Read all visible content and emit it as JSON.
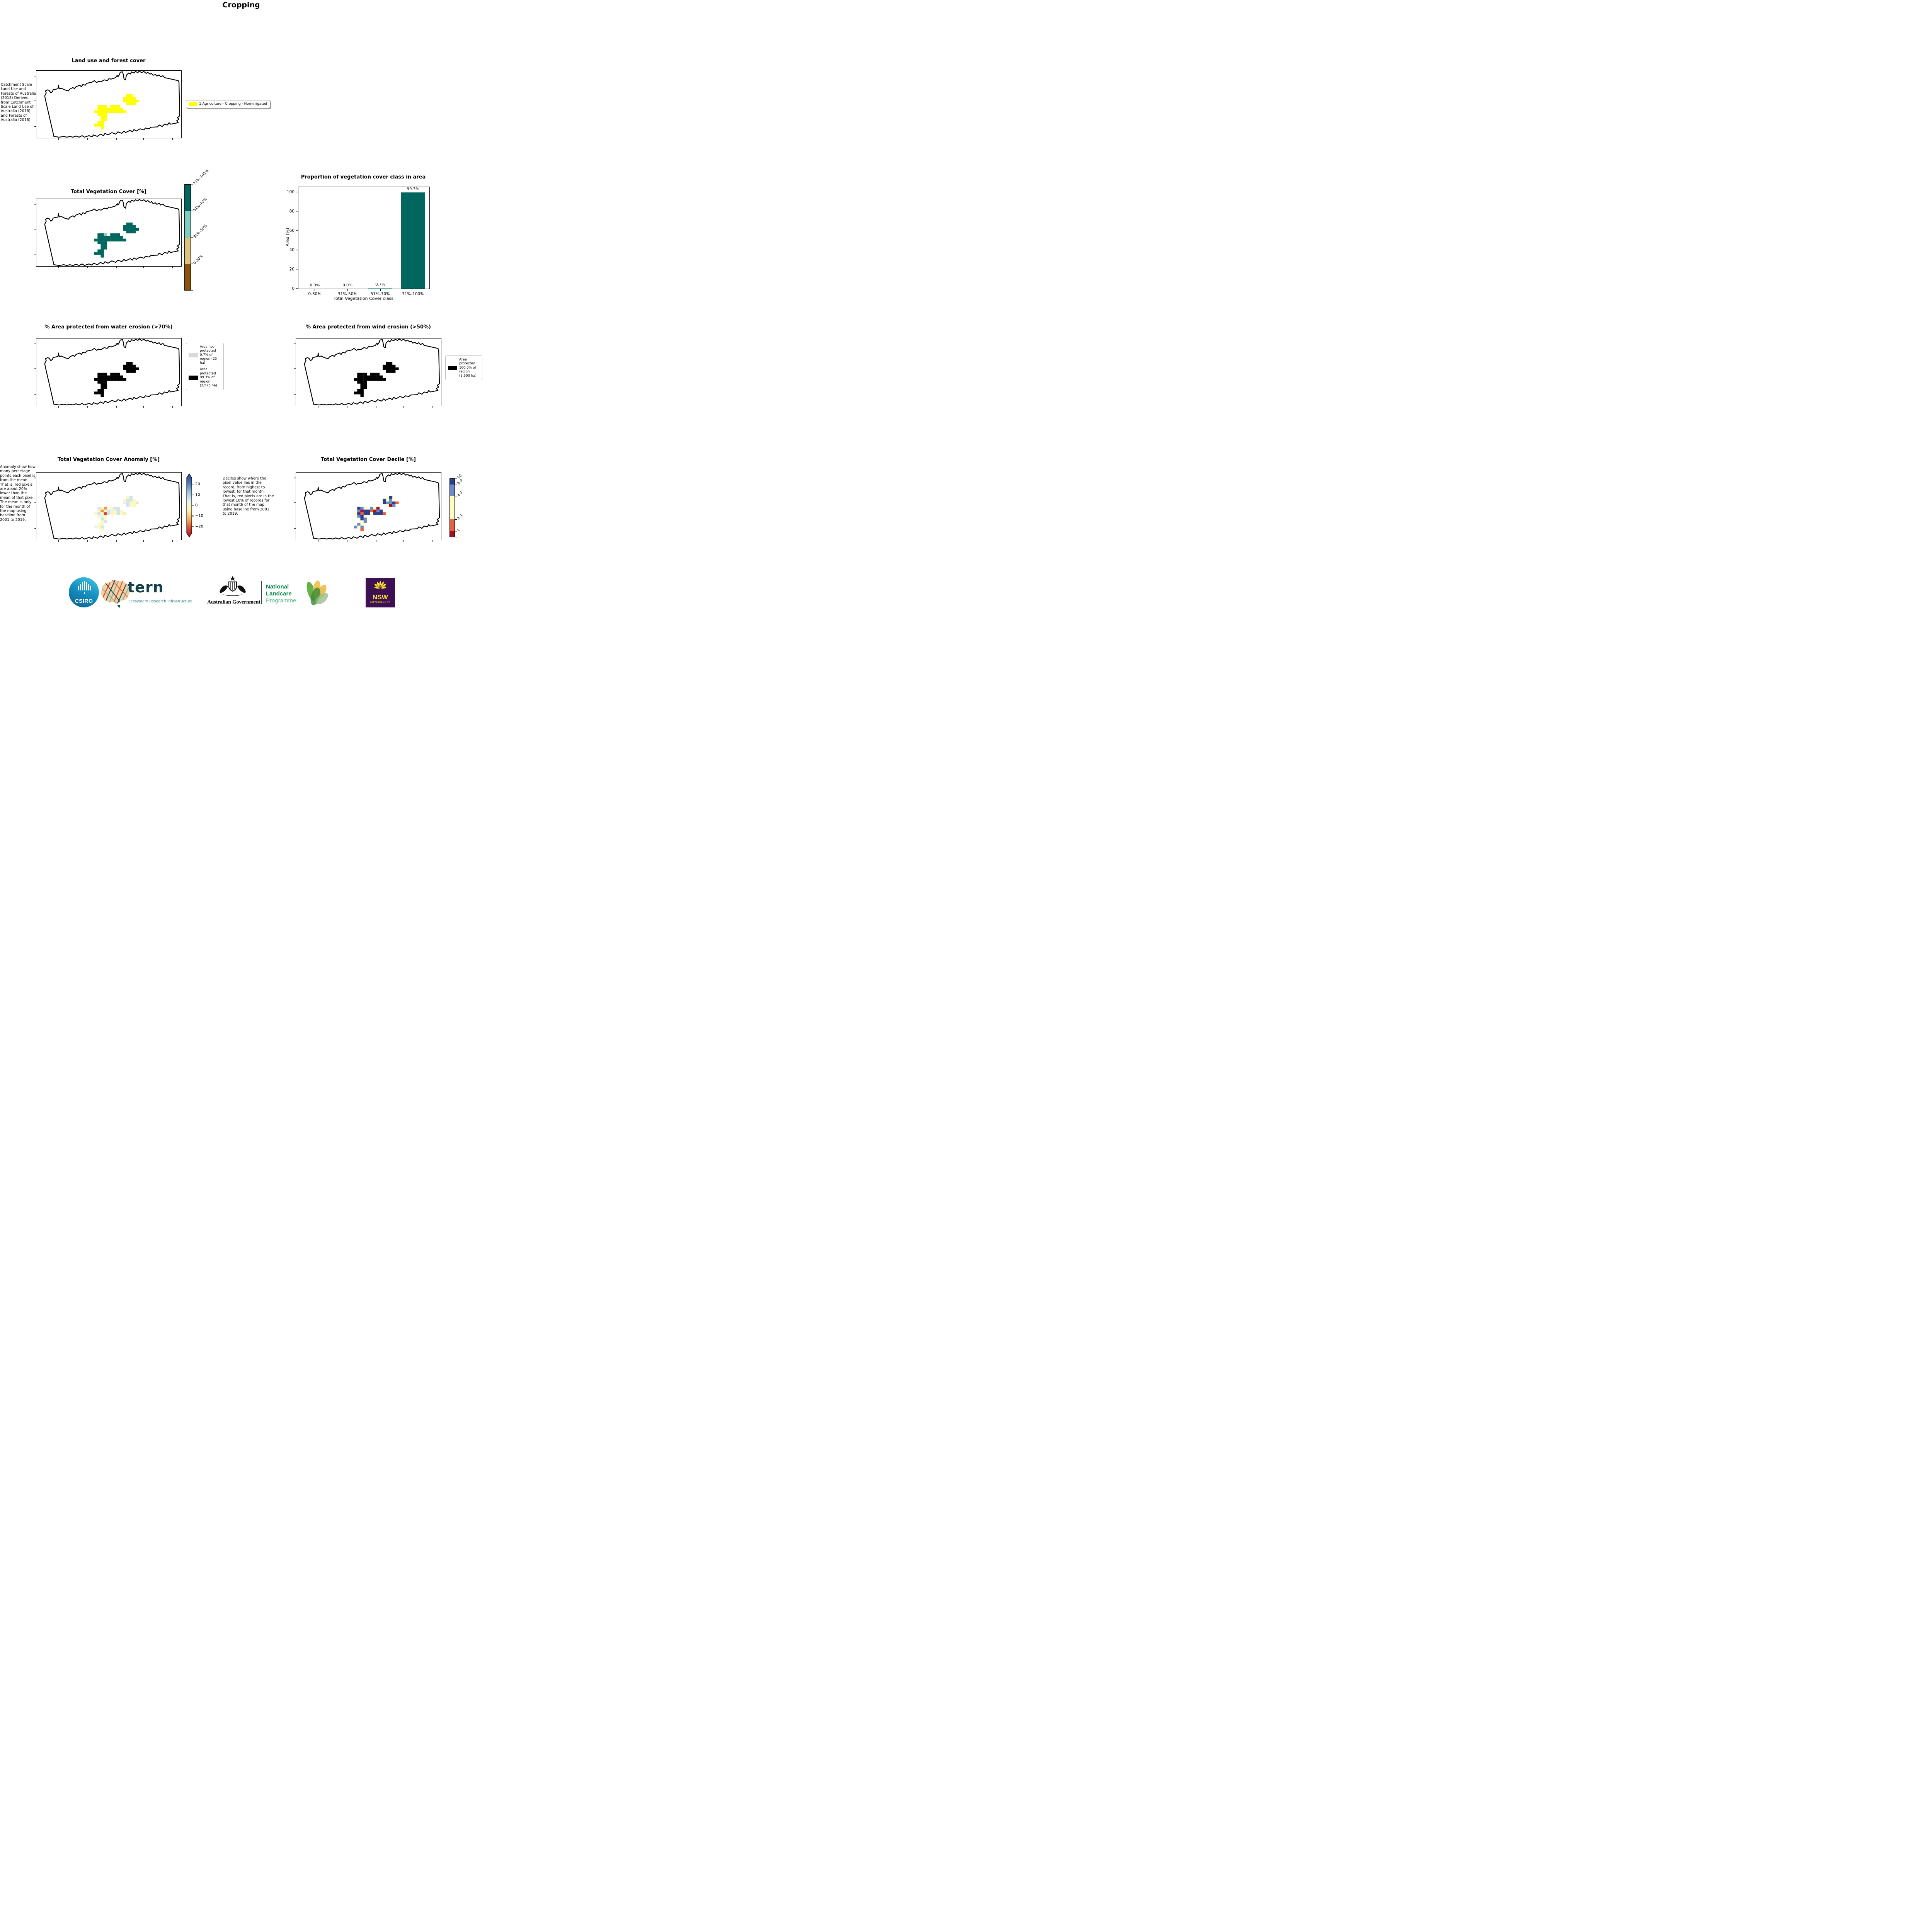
{
  "page_title": "Cropping",
  "panels": {
    "landuse": {
      "title": "Land use and forest cover",
      "note": " Catchment Scale Land Use and Forests of Australia (2018) Derived from Catchment Scale Land Use of Australia (2018) and Forests of Australia (2018)",
      "legend": {
        "swatch_color": "#ffff00",
        "label": "1 Agriculture - Cropping - Non-irrigated"
      }
    },
    "veg": {
      "title": "Total Vegetation Cover [%]",
      "colorbar": {
        "segments": [
          {
            "label": "71%-100%",
            "color": "#01665e"
          },
          {
            "label": "51%-70%",
            "color": "#80cdc1"
          },
          {
            "label": "31%-50%",
            "color": "#dfc27d"
          },
          {
            "label": "0-30%",
            "color": "#8c510a"
          }
        ]
      }
    },
    "water": {
      "title": "% Area protected from water erosion (>70%)",
      "legend": [
        {
          "swatch_color": "#d9d9d9",
          "label": "Area not protected 0.7% of region (25 ha)"
        },
        {
          "swatch_color": "#000000",
          "label": "Area protected 99.3% of region (3,575 ha)"
        }
      ]
    },
    "wind": {
      "title": "% Area protected from wind erosion (>50%)",
      "legend": [
        {
          "swatch_color": "#000000",
          "label": "Area protected 100.0% of region (3,600 ha)"
        }
      ]
    },
    "anomaly": {
      "title": "Total Vegetation Cover Anomaly [%]",
      "note": "Anomaly show how many percetage points each pixel is from the mean. That is, red pixels are about 20% lower than the mean of that pixel. The mean is only for the month of the map using baseline from 2001 to 2019.",
      "colorbar": {
        "ticks": [
          "20",
          "10",
          "0",
          "−10",
          "−20"
        ],
        "gradient": [
          {
            "at": "0%",
            "color": "#2d3e8e"
          },
          {
            "at": "14%",
            "color": "#4a74b4"
          },
          {
            "at": "30%",
            "color": "#a3c8e2"
          },
          {
            "at": "44%",
            "color": "#eaf5ef"
          },
          {
            "at": "57%",
            "color": "#fdf6b3"
          },
          {
            "at": "72%",
            "color": "#f8ae61"
          },
          {
            "at": "86%",
            "color": "#dd4a2c"
          },
          {
            "at": "100%",
            "color": "#a50f26"
          }
        ]
      }
    },
    "decile": {
      "title": "Total Vegetation Cover Decile [%]",
      "note": "Deciles show where the pixel value lies in the record, from highest to lowest, for that month. That is, red pixels are in the lowest 10% of records for that month of the map using baseline from 2001 to 2019.",
      "colorbar": {
        "segments": [
          {
            "label": "10",
            "color": "#2c3e8f",
            "h": 10
          },
          {
            "label": "8-9",
            "color": "#6e8ac4",
            "h": 20
          },
          {
            "label": "4-7",
            "color": "#ffffbf",
            "h": 40
          },
          {
            "label": "2-3",
            "color": "#e8613d",
            "h": 20
          },
          {
            "label": "1",
            "color": "#a50f26",
            "h": 10
          }
        ]
      }
    }
  },
  "chart_data": {
    "type": "bar",
    "title": "Proportion of vegetation cover class in area",
    "categories": [
      "0-30%",
      "31%-50%",
      "51%-70%",
      "71%-100%"
    ],
    "values": [
      0.0,
      0.0,
      0.7,
      99.3
    ],
    "bar_labels": [
      "0.0%",
      "0.0%",
      "0.7%",
      "99.3%"
    ],
    "bar_colors": [
      "#01665e",
      "#01665e",
      "#80cdc1",
      "#01665e"
    ],
    "xlabel": "Total Vegetation Cover class",
    "ylabel": "Area (%)",
    "yticks": [
      0,
      20,
      40,
      60,
      80,
      100
    ],
    "ytick_labels": [
      "0",
      "20",
      "40",
      "60",
      "80",
      "100"
    ],
    "ylim": [
      0,
      105
    ],
    "grid": false,
    "legend_position": "none"
  },
  "map_cells": [
    [
      10,
      0
    ],
    [
      11,
      0
    ],
    [
      9,
      1
    ],
    [
      10,
      1
    ],
    [
      11,
      1
    ],
    [
      12,
      1
    ],
    [
      9,
      2
    ],
    [
      10,
      2
    ],
    [
      11,
      2
    ],
    [
      12,
      2
    ],
    [
      13,
      2
    ],
    [
      10,
      3
    ],
    [
      11,
      3
    ],
    [
      12,
      3
    ],
    [
      5,
      4
    ],
    [
      6,
      4
    ],
    [
      7,
      4
    ],
    [
      4,
      5
    ],
    [
      5,
      5
    ],
    [
      6,
      5
    ],
    [
      7,
      5
    ],
    [
      8,
      5
    ],
    [
      5,
      6
    ],
    [
      6,
      6
    ],
    [
      7,
      6
    ],
    [
      8,
      6
    ],
    [
      9,
      6
    ],
    [
      1,
      4
    ],
    [
      2,
      4
    ],
    [
      3,
      4
    ],
    [
      1,
      5
    ],
    [
      2,
      5
    ],
    [
      3,
      5
    ],
    [
      0,
      6
    ],
    [
      1,
      6
    ],
    [
      2,
      6
    ],
    [
      3,
      6
    ],
    [
      4,
      6
    ],
    [
      1,
      7
    ],
    [
      2,
      7
    ],
    [
      3,
      7
    ],
    [
      2,
      8
    ],
    [
      3,
      8
    ],
    [
      2,
      9
    ],
    [
      3,
      9
    ],
    [
      1,
      10
    ],
    [
      2,
      10
    ],
    [
      0,
      11
    ],
    [
      1,
      11
    ],
    [
      2,
      11
    ],
    [
      2,
      12
    ]
  ],
  "maps": {
    "landuse": {
      "mode": "solid",
      "color": "#ffff00"
    },
    "veg": {
      "mode": "indexed",
      "palette": [
        "#01665e",
        "#80cdc1"
      ],
      "indices": [
        0,
        0,
        0,
        0,
        0,
        0,
        0,
        0,
        0,
        0,
        0,
        0,
        0,
        0,
        0,
        0,
        0,
        0,
        0,
        0,
        0,
        0,
        0,
        0,
        0,
        0,
        0,
        0,
        0,
        1,
        0,
        0,
        0,
        0,
        0,
        0,
        0,
        0,
        0,
        0,
        0,
        0,
        0,
        0,
        0,
        0,
        0,
        0,
        0,
        0,
        0
      ]
    },
    "water": {
      "mode": "solid",
      "color": "#000000"
    },
    "wind": {
      "mode": "solid",
      "color": "#000000"
    },
    "anomaly": {
      "mode": "indexed",
      "palette": [
        "#fdf8c0",
        "#cfe3f0",
        "#e9f2ec",
        "#f6ecac",
        "#f0954e",
        "#d9432e"
      ],
      "indices": [
        0,
        1,
        0,
        1,
        1,
        0,
        2,
        1,
        0,
        0,
        3,
        1,
        0,
        0,
        0,
        1,
        1,
        1,
        2,
        0,
        1,
        0,
        0,
        0,
        1,
        0,
        3,
        1,
        0,
        4,
        0,
        4,
        0,
        0,
        1,
        0,
        5,
        1,
        0,
        2,
        0,
        1,
        0,
        0,
        1,
        0,
        0,
        2,
        0,
        1,
        0
      ]
    },
    "decile": {
      "mode": "indexed",
      "palette": [
        "#2c3e8f",
        "#6e8ac4",
        "#ffffbf",
        "#e8613d",
        "#a50f26"
      ],
      "indices": [
        2,
        0,
        0,
        2,
        1,
        2,
        0,
        1,
        1,
        0,
        3,
        2,
        4,
        1,
        1,
        2,
        4,
        0,
        3,
        4,
        1,
        0,
        2,
        0,
        0,
        0,
        3,
        0,
        1,
        2,
        1,
        4,
        0,
        2,
        0,
        3,
        0,
        0,
        1,
        0,
        2,
        0,
        1,
        2,
        1,
        1,
        2,
        1,
        2,
        1,
        3
      ]
    }
  },
  "logos": {
    "csiro_label": "CSIRO",
    "tern_label": "tern",
    "tern_sub": "Ecosystem Research Infrastructure",
    "aus_gov": "Australian Government",
    "landcare_line1": "National",
    "landcare_line2": "Landcare",
    "landcare_line3": "Programme",
    "nsw_label": "NSW",
    "nsw_sub": "GOVERNMENT"
  }
}
